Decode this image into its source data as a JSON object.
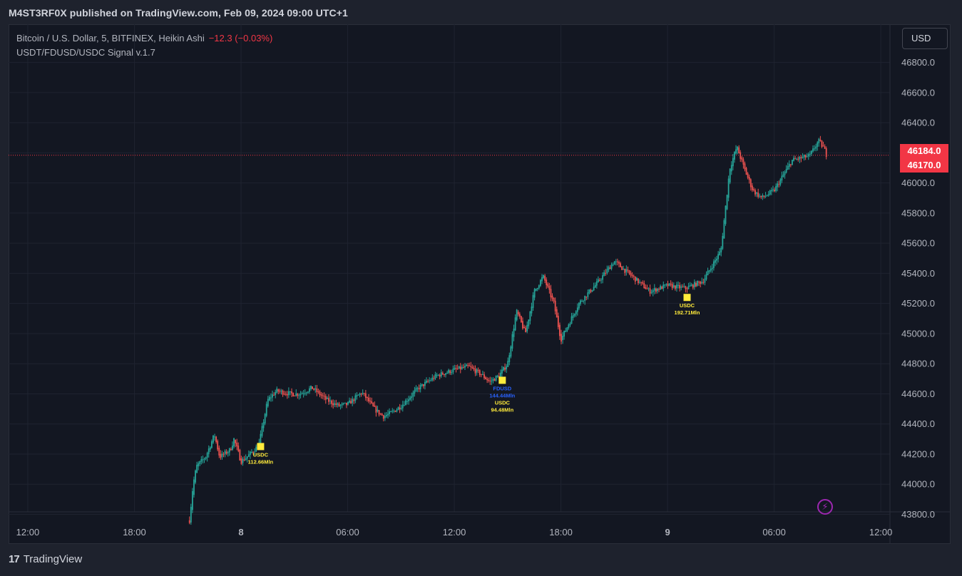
{
  "header": {
    "published_text": "M4ST3RF0X published on TradingView.com, Feb 09, 2024 09:00 UTC+1"
  },
  "legend": {
    "symbol": "Bitcoin / U.S. Dollar, 5, BITFINEX, Heikin Ashi",
    "change": "−12.3 (−0.03%)",
    "indicator": "USDT/FDUSD/USDC Signal v.1.7"
  },
  "currency_button": "USD",
  "price_badges": [
    "46184.0",
    "46170.0"
  ],
  "footer": {
    "brand": "TradingView",
    "logo": "17"
  },
  "colors": {
    "background": "#131722",
    "up": "#26a69a",
    "down": "#ef5350",
    "signal": "#ffeb3b",
    "fdusd_label": "#2962ff",
    "badge": "#f23645",
    "price_line": "#f23645"
  },
  "chart_data": {
    "type": "candlestick",
    "style": "Heikin Ashi",
    "symbol": "Bitcoin / U.S. Dollar, 5, BITFINEX",
    "y_ticks": [
      43800,
      44000,
      44200,
      44400,
      44600,
      44800,
      45000,
      45200,
      45400,
      45600,
      45800,
      46000,
      46200,
      46400,
      46600,
      46800
    ],
    "y_tick_labels": [
      "43800.0",
      "44000.0",
      "44200.0",
      "44400.0",
      "44600.0",
      "44800.0",
      "45000.0",
      "45200.0",
      "45400.0",
      "45600.0",
      "45800.0",
      "46000.0",
      "46200.0",
      "46400.0",
      "46600.0",
      "46800.0"
    ],
    "ylim": [
      43700,
      46900
    ],
    "x_ticks": [
      {
        "label": "12:00",
        "hour": -12,
        "bold": false
      },
      {
        "label": "18:00",
        "hour": -6,
        "bold": false
      },
      {
        "label": "8",
        "hour": 0,
        "bold": true
      },
      {
        "label": "06:00",
        "hour": 6,
        "bold": false
      },
      {
        "label": "12:00",
        "hour": 12,
        "bold": false
      },
      {
        "label": "18:00",
        "hour": 18,
        "bold": false
      },
      {
        "label": "9",
        "hour": 24,
        "bold": true
      },
      {
        "label": "06:00",
        "hour": 30,
        "bold": false
      },
      {
        "label": "12:00",
        "hour": 36,
        "bold": false
      }
    ],
    "xlim_hours": [
      -13,
      40.8
    ],
    "last_price": 46184.0,
    "grid": true,
    "price_path": [
      [
        -2.9,
        43760
      ],
      [
        -2.7,
        44000
      ],
      [
        -2.5,
        44120
      ],
      [
        -2.0,
        44180
      ],
      [
        -1.5,
        44330
      ],
      [
        -1.2,
        44180
      ],
      [
        -0.6,
        44230
      ],
      [
        -0.4,
        44300
      ],
      [
        0.0,
        44150
      ],
      [
        0.5,
        44200
      ],
      [
        1.0,
        44260
      ],
      [
        1.5,
        44560
      ],
      [
        2.0,
        44620
      ],
      [
        2.8,
        44600
      ],
      [
        3.3,
        44600
      ],
      [
        4.0,
        44640
      ],
      [
        4.8,
        44560
      ],
      [
        5.5,
        44520
      ],
      [
        6.0,
        44530
      ],
      [
        6.8,
        44610
      ],
      [
        7.5,
        44500
      ],
      [
        8.0,
        44450
      ],
      [
        8.4,
        44470
      ],
      [
        9.0,
        44520
      ],
      [
        10.0,
        44640
      ],
      [
        11.0,
        44720
      ],
      [
        12.0,
        44760
      ],
      [
        12.8,
        44780
      ],
      [
        13.5,
        44730
      ],
      [
        14.0,
        44680
      ],
      [
        14.5,
        44720
      ],
      [
        15.0,
        44800
      ],
      [
        15.5,
        45150
      ],
      [
        16.0,
        45000
      ],
      [
        16.5,
        45280
      ],
      [
        17.0,
        45380
      ],
      [
        17.6,
        45200
      ],
      [
        18.0,
        44960
      ],
      [
        18.5,
        45080
      ],
      [
        19.0,
        45200
      ],
      [
        20.0,
        45330
      ],
      [
        21.0,
        45480
      ],
      [
        22.0,
        45380
      ],
      [
        23.0,
        45280
      ],
      [
        24.0,
        45320
      ],
      [
        25.0,
        45300
      ],
      [
        26.0,
        45350
      ],
      [
        27.0,
        45550
      ],
      [
        27.5,
        46100
      ],
      [
        27.9,
        46240
      ],
      [
        28.3,
        46100
      ],
      [
        28.8,
        45950
      ],
      [
        29.3,
        45900
      ],
      [
        30.0,
        45950
      ],
      [
        30.5,
        46050
      ],
      [
        31.0,
        46150
      ],
      [
        32.0,
        46180
      ],
      [
        32.5,
        46280
      ],
      [
        32.8,
        46230
      ],
      [
        32.95,
        46184
      ]
    ],
    "signals": [
      {
        "hour": 1.1,
        "price": 44250,
        "labels": [
          {
            "text": "USDC",
            "color": "#ffeb3b"
          },
          {
            "text": "112.66Mln",
            "color": "#ffeb3b"
          }
        ]
      },
      {
        "hour": 14.7,
        "price": 44690,
        "labels": [
          {
            "text": "FDUSD",
            "color": "#2962ff"
          },
          {
            "text": "144.44Mln",
            "color": "#2962ff"
          },
          {
            "text": "USDC",
            "color": "#ffeb3b"
          },
          {
            "text": "94.48Mln",
            "color": "#ffeb3b"
          }
        ]
      },
      {
        "hour": 25.1,
        "price": 45240,
        "labels": [
          {
            "text": "USDC",
            "color": "#ffeb3b"
          },
          {
            "text": "192.71Mln",
            "color": "#ffeb3b"
          }
        ]
      }
    ]
  }
}
